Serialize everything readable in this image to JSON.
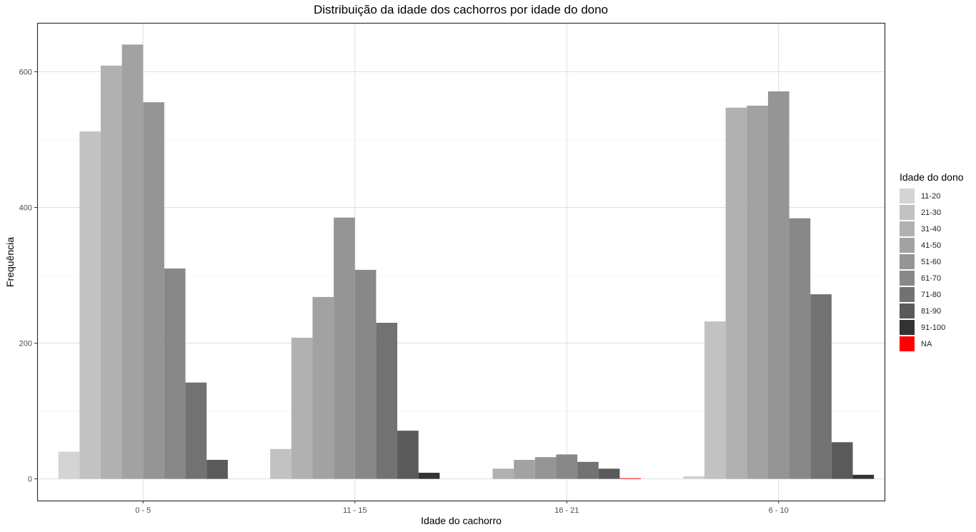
{
  "chart_data": {
    "type": "bar",
    "title": "Distribuição da idade dos cachorros por idade do dono",
    "xlabel": "Idade do cachorro",
    "ylabel": "Frequência",
    "categories": [
      "0 - 5",
      "11 - 15",
      "16 - 21",
      "6 - 10"
    ],
    "ylim": [
      -32,
      672
    ],
    "yticks": [
      0,
      200,
      400,
      600
    ],
    "grid": true,
    "legend_title": "Idade do dono",
    "legend_position": "right",
    "series": [
      {
        "name": "11-20",
        "color": "#d4d4d4",
        "values": [
          40,
          0,
          0,
          4
        ]
      },
      {
        "name": "21-30",
        "color": "#c2c2c2",
        "values": [
          512,
          44,
          0,
          232
        ]
      },
      {
        "name": "31-40",
        "color": "#b1b1b1",
        "values": [
          609,
          208,
          15,
          547
        ]
      },
      {
        "name": "41-50",
        "color": "#a2a2a2",
        "values": [
          640,
          268,
          28,
          550
        ]
      },
      {
        "name": "51-60",
        "color": "#959595",
        "values": [
          555,
          385,
          32,
          571
        ]
      },
      {
        "name": "61-70",
        "color": "#888888",
        "values": [
          310,
          308,
          36,
          384
        ]
      },
      {
        "name": "71-80",
        "color": "#727272",
        "values": [
          142,
          230,
          25,
          272
        ]
      },
      {
        "name": "81-90",
        "color": "#5a5a5a",
        "values": [
          28,
          71,
          15,
          54
        ]
      },
      {
        "name": "91-100",
        "color": "#333333",
        "values": [
          0,
          9,
          0,
          6
        ]
      },
      {
        "name": "NA",
        "color": "#ff0000",
        "values": [
          0,
          0,
          1,
          0
        ]
      }
    ],
    "group_layout": [
      [
        "11-20",
        "21-30",
        "31-40",
        "41-50",
        "51-60",
        "61-70",
        "71-80",
        "81-90"
      ],
      [
        "21-30",
        "31-40",
        "41-50",
        "51-60",
        "61-70",
        "71-80",
        "81-90",
        "91-100"
      ],
      [
        "31-40",
        "41-50",
        "51-60",
        "61-70",
        "71-80",
        "81-90",
        "NA"
      ],
      [
        "11-20",
        "21-30",
        "31-40",
        "41-50",
        "51-60",
        "61-70",
        "71-80",
        "81-90",
        "91-100"
      ]
    ]
  }
}
